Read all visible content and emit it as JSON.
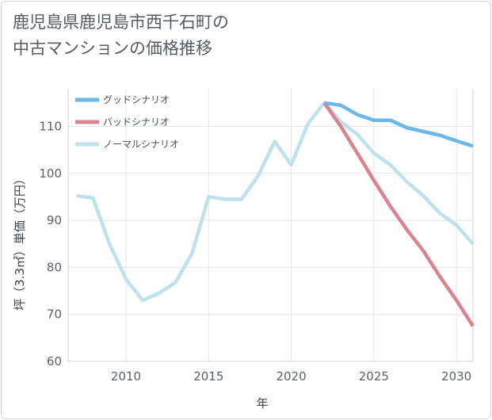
{
  "title": {
    "line1": "鹿児島県鹿児島市西千石町の",
    "line2": "中古マンションの価格推移"
  },
  "chart_data": {
    "type": "line",
    "xlabel": "年",
    "ylabel": "坪（3.3㎡）単価（万円）",
    "xlim": [
      2006.5,
      2031
    ],
    "ylim": [
      60,
      118
    ],
    "x_ticks": [
      2010,
      2015,
      2020,
      2025,
      2030
    ],
    "y_ticks": [
      60,
      70,
      80,
      90,
      100,
      110
    ],
    "grid": true,
    "legend_position": "top-left",
    "series": [
      {
        "name": "グッドシナリオ",
        "color": "#6ab7ea",
        "x": [
          2022,
          2023,
          2024,
          2025,
          2026,
          2027,
          2028,
          2029,
          2030,
          2031
        ],
        "y": [
          115,
          114.5,
          112.5,
          111.3,
          111.3,
          109.7,
          108.9,
          108.1,
          106.9,
          105.8
        ]
      },
      {
        "name": "バッドシナリオ",
        "color": "#d9848f",
        "x": [
          2022,
          2023,
          2024,
          2025,
          2026,
          2027,
          2028,
          2029,
          2030,
          2031
        ],
        "y": [
          115,
          110,
          104.3,
          98.5,
          93,
          88,
          83.5,
          78,
          73,
          67.5
        ]
      },
      {
        "name": "ノーマルシナリオ",
        "color": "#bfe1ee",
        "x": [
          2007,
          2008,
          2009,
          2010,
          2011,
          2012,
          2013,
          2014,
          2015,
          2016,
          2017,
          2018,
          2019,
          2020,
          2021,
          2022,
          2023,
          2024,
          2025,
          2026,
          2027,
          2028,
          2029,
          2030,
          2031
        ],
        "y": [
          95.2,
          94.8,
          85,
          77.5,
          73,
          74.5,
          76.8,
          83,
          95,
          94.5,
          94.5,
          99.5,
          106.8,
          101.8,
          110.5,
          115,
          111,
          108.3,
          104.3,
          101.8,
          98.2,
          95.2,
          91.5,
          89,
          85
        ]
      }
    ]
  }
}
